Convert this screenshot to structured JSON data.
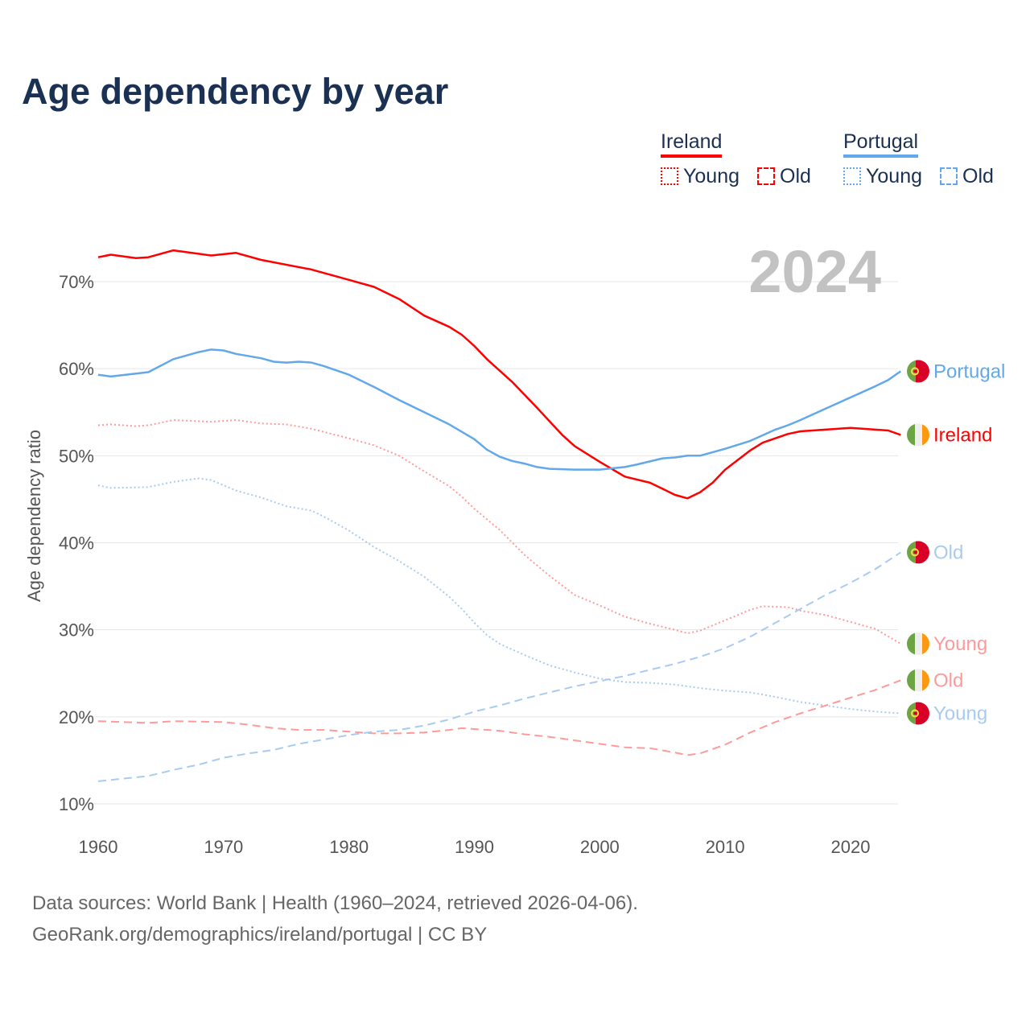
{
  "title": "Age dependency by year",
  "legend": {
    "groups": [
      {
        "country": "Ireland",
        "color": "#ff0000",
        "young": "Young",
        "old": "Old"
      },
      {
        "country": "Portugal",
        "color": "#62a8ea",
        "young": "Young",
        "old": "Old"
      }
    ]
  },
  "footer": {
    "line1": "Data sources: World Bank | Health (1960–2024, retrieved 2026-04-06).",
    "line2": "GeoRank.org/demographics/ireland/portugal | CC BY"
  },
  "chart_data": {
    "type": "line",
    "title": "Age dependency by year",
    "xlabel": "",
    "ylabel": "Age dependency ratio",
    "year_label": "2024",
    "xlim": [
      1960,
      2024
    ],
    "ylim": [
      10,
      72
    ],
    "x_ticks": [
      1960,
      1970,
      1980,
      1990,
      2000,
      2010,
      2020
    ],
    "y_ticks": [
      10,
      20,
      30,
      40,
      50,
      60,
      70
    ],
    "y_tick_labels": [
      "10%",
      "20%",
      "30%",
      "40%",
      "50%",
      "60%",
      "70%"
    ],
    "grid": true,
    "legend_position": "top-right",
    "series": [
      {
        "name": "Ireland",
        "end_label": "Ireland",
        "flag": "ireland",
        "style": "solid",
        "color": "#ff0000",
        "points": [
          [
            1960,
            72.8
          ],
          [
            1961,
            73.1
          ],
          [
            1963,
            72.7
          ],
          [
            1964,
            72.8
          ],
          [
            1966,
            73.6
          ],
          [
            1969,
            73.0
          ],
          [
            1971,
            73.3
          ],
          [
            1973,
            72.5
          ],
          [
            1977,
            71.4
          ],
          [
            1980,
            70.2
          ],
          [
            1982,
            69.4
          ],
          [
            1984,
            68.0
          ],
          [
            1986,
            66.1
          ],
          [
            1988,
            64.8
          ],
          [
            1989,
            63.9
          ],
          [
            1990,
            62.6
          ],
          [
            1991,
            61.1
          ],
          [
            1993,
            58.5
          ],
          [
            1995,
            55.5
          ],
          [
            1997,
            52.4
          ],
          [
            1998,
            51.1
          ],
          [
            2000,
            49.3
          ],
          [
            2002,
            47.6
          ],
          [
            2004,
            46.9
          ],
          [
            2005,
            46.2
          ],
          [
            2006,
            45.5
          ],
          [
            2007,
            45.1
          ],
          [
            2008,
            45.8
          ],
          [
            2009,
            46.9
          ],
          [
            2010,
            48.4
          ],
          [
            2012,
            50.6
          ],
          [
            2013,
            51.5
          ],
          [
            2015,
            52.5
          ],
          [
            2016,
            52.8
          ],
          [
            2018,
            53.0
          ],
          [
            2020,
            53.2
          ],
          [
            2023,
            52.9
          ],
          [
            2024,
            52.4
          ]
        ]
      },
      {
        "name": "Portugal",
        "end_label": "Portugal",
        "flag": "portugal",
        "style": "solid",
        "color": "#62a8ea",
        "points": [
          [
            1960,
            59.3
          ],
          [
            1961,
            59.1
          ],
          [
            1964,
            59.6
          ],
          [
            1966,
            61.1
          ],
          [
            1968,
            61.9
          ],
          [
            1969,
            62.2
          ],
          [
            1970,
            62.1
          ],
          [
            1971,
            61.7
          ],
          [
            1973,
            61.2
          ],
          [
            1974,
            60.8
          ],
          [
            1975,
            60.7
          ],
          [
            1976,
            60.8
          ],
          [
            1977,
            60.7
          ],
          [
            1978,
            60.3
          ],
          [
            1980,
            59.3
          ],
          [
            1982,
            57.9
          ],
          [
            1984,
            56.4
          ],
          [
            1986,
            55.0
          ],
          [
            1988,
            53.6
          ],
          [
            1990,
            51.9
          ],
          [
            1991,
            50.7
          ],
          [
            1992,
            49.9
          ],
          [
            1993,
            49.4
          ],
          [
            1994,
            49.1
          ],
          [
            1995,
            48.7
          ],
          [
            1996,
            48.5
          ],
          [
            1998,
            48.4
          ],
          [
            2000,
            48.4
          ],
          [
            2002,
            48.7
          ],
          [
            2003,
            49.0
          ],
          [
            2005,
            49.7
          ],
          [
            2006,
            49.8
          ],
          [
            2007,
            50.0
          ],
          [
            2008,
            50.0
          ],
          [
            2010,
            50.8
          ],
          [
            2012,
            51.7
          ],
          [
            2014,
            53.0
          ],
          [
            2015,
            53.5
          ],
          [
            2016,
            54.1
          ],
          [
            2018,
            55.4
          ],
          [
            2020,
            56.7
          ],
          [
            2022,
            58.0
          ],
          [
            2023,
            58.7
          ],
          [
            2024,
            59.7
          ]
        ]
      },
      {
        "name": "Ireland Young",
        "end_label": "Young",
        "flag": "ireland",
        "style": "dotted",
        "color": "#ff9a9a",
        "points": [
          [
            1960,
            53.5
          ],
          [
            1961,
            53.6
          ],
          [
            1963,
            53.4
          ],
          [
            1964,
            53.5
          ],
          [
            1966,
            54.1
          ],
          [
            1969,
            53.9
          ],
          [
            1971,
            54.1
          ],
          [
            1973,
            53.7
          ],
          [
            1975,
            53.6
          ],
          [
            1977,
            53.1
          ],
          [
            1980,
            52.0
          ],
          [
            1982,
            51.2
          ],
          [
            1984,
            50.0
          ],
          [
            1986,
            48.2
          ],
          [
            1988,
            46.5
          ],
          [
            1989,
            45.3
          ],
          [
            1990,
            43.9
          ],
          [
            1992,
            41.5
          ],
          [
            1994,
            38.6
          ],
          [
            1996,
            36.2
          ],
          [
            1998,
            34.0
          ],
          [
            2000,
            32.8
          ],
          [
            2002,
            31.5
          ],
          [
            2004,
            30.7
          ],
          [
            2006,
            30.0
          ],
          [
            2007,
            29.6
          ],
          [
            2008,
            29.9
          ],
          [
            2010,
            31.1
          ],
          [
            2012,
            32.3
          ],
          [
            2013,
            32.7
          ],
          [
            2015,
            32.6
          ],
          [
            2016,
            32.2
          ],
          [
            2018,
            31.7
          ],
          [
            2020,
            30.9
          ],
          [
            2022,
            30.1
          ],
          [
            2024,
            28.4
          ]
        ]
      },
      {
        "name": "Portugal Young",
        "end_label": "Young",
        "flag": "portugal",
        "style": "dotted",
        "color": "#a8cbf0",
        "points": [
          [
            1960,
            46.6
          ],
          [
            1961,
            46.3
          ],
          [
            1964,
            46.4
          ],
          [
            1966,
            47.0
          ],
          [
            1968,
            47.4
          ],
          [
            1969,
            47.2
          ],
          [
            1971,
            46.0
          ],
          [
            1973,
            45.2
          ],
          [
            1975,
            44.2
          ],
          [
            1977,
            43.7
          ],
          [
            1978,
            43.0
          ],
          [
            1980,
            41.4
          ],
          [
            1982,
            39.5
          ],
          [
            1984,
            37.9
          ],
          [
            1986,
            36.1
          ],
          [
            1988,
            33.8
          ],
          [
            1989,
            32.4
          ],
          [
            1990,
            30.8
          ],
          [
            1991,
            29.4
          ],
          [
            1992,
            28.4
          ],
          [
            1994,
            27.1
          ],
          [
            1996,
            25.9
          ],
          [
            1998,
            25.1
          ],
          [
            2000,
            24.4
          ],
          [
            2002,
            24.0
          ],
          [
            2004,
            23.9
          ],
          [
            2006,
            23.7
          ],
          [
            2008,
            23.3
          ],
          [
            2010,
            23.0
          ],
          [
            2012,
            22.8
          ],
          [
            2014,
            22.3
          ],
          [
            2016,
            21.7
          ],
          [
            2018,
            21.3
          ],
          [
            2020,
            20.9
          ],
          [
            2022,
            20.6
          ],
          [
            2024,
            20.4
          ]
        ]
      },
      {
        "name": "Ireland Old",
        "end_label": "Old",
        "flag": "ireland",
        "style": "dashed",
        "color": "#ff9a9a",
        "points": [
          [
            1960,
            19.5
          ],
          [
            1962,
            19.4
          ],
          [
            1964,
            19.3
          ],
          [
            1966,
            19.5
          ],
          [
            1970,
            19.4
          ],
          [
            1972,
            19.1
          ],
          [
            1974,
            18.7
          ],
          [
            1976,
            18.5
          ],
          [
            1978,
            18.5
          ],
          [
            1980,
            18.3
          ],
          [
            1982,
            18.1
          ],
          [
            1984,
            18.1
          ],
          [
            1986,
            18.2
          ],
          [
            1988,
            18.5
          ],
          [
            1989,
            18.7
          ],
          [
            1990,
            18.6
          ],
          [
            1992,
            18.4
          ],
          [
            1994,
            18.0
          ],
          [
            1996,
            17.7
          ],
          [
            1998,
            17.3
          ],
          [
            2000,
            16.9
          ],
          [
            2002,
            16.5
          ],
          [
            2004,
            16.4
          ],
          [
            2006,
            15.9
          ],
          [
            2007,
            15.6
          ],
          [
            2008,
            15.8
          ],
          [
            2010,
            16.8
          ],
          [
            2012,
            18.2
          ],
          [
            2014,
            19.4
          ],
          [
            2016,
            20.4
          ],
          [
            2018,
            21.3
          ],
          [
            2020,
            22.2
          ],
          [
            2022,
            23.1
          ],
          [
            2024,
            24.2
          ]
        ]
      },
      {
        "name": "Portugal Old",
        "end_label": "Old",
        "flag": "portugal",
        "style": "dashed",
        "color": "#a8cbf0",
        "points": [
          [
            1960,
            12.6
          ],
          [
            1962,
            12.9
          ],
          [
            1964,
            13.2
          ],
          [
            1966,
            13.9
          ],
          [
            1968,
            14.5
          ],
          [
            1970,
            15.3
          ],
          [
            1972,
            15.8
          ],
          [
            1974,
            16.2
          ],
          [
            1976,
            16.9
          ],
          [
            1978,
            17.4
          ],
          [
            1980,
            17.9
          ],
          [
            1982,
            18.3
          ],
          [
            1984,
            18.5
          ],
          [
            1986,
            19.0
          ],
          [
            1988,
            19.7
          ],
          [
            1990,
            20.6
          ],
          [
            1992,
            21.3
          ],
          [
            1994,
            22.1
          ],
          [
            1996,
            22.8
          ],
          [
            1998,
            23.5
          ],
          [
            2000,
            24.1
          ],
          [
            2002,
            24.7
          ],
          [
            2004,
            25.4
          ],
          [
            2006,
            26.1
          ],
          [
            2008,
            26.9
          ],
          [
            2010,
            27.9
          ],
          [
            2012,
            29.2
          ],
          [
            2014,
            30.8
          ],
          [
            2016,
            32.4
          ],
          [
            2018,
            34.0
          ],
          [
            2020,
            35.4
          ],
          [
            2022,
            37.0
          ],
          [
            2024,
            38.9
          ]
        ]
      }
    ]
  }
}
